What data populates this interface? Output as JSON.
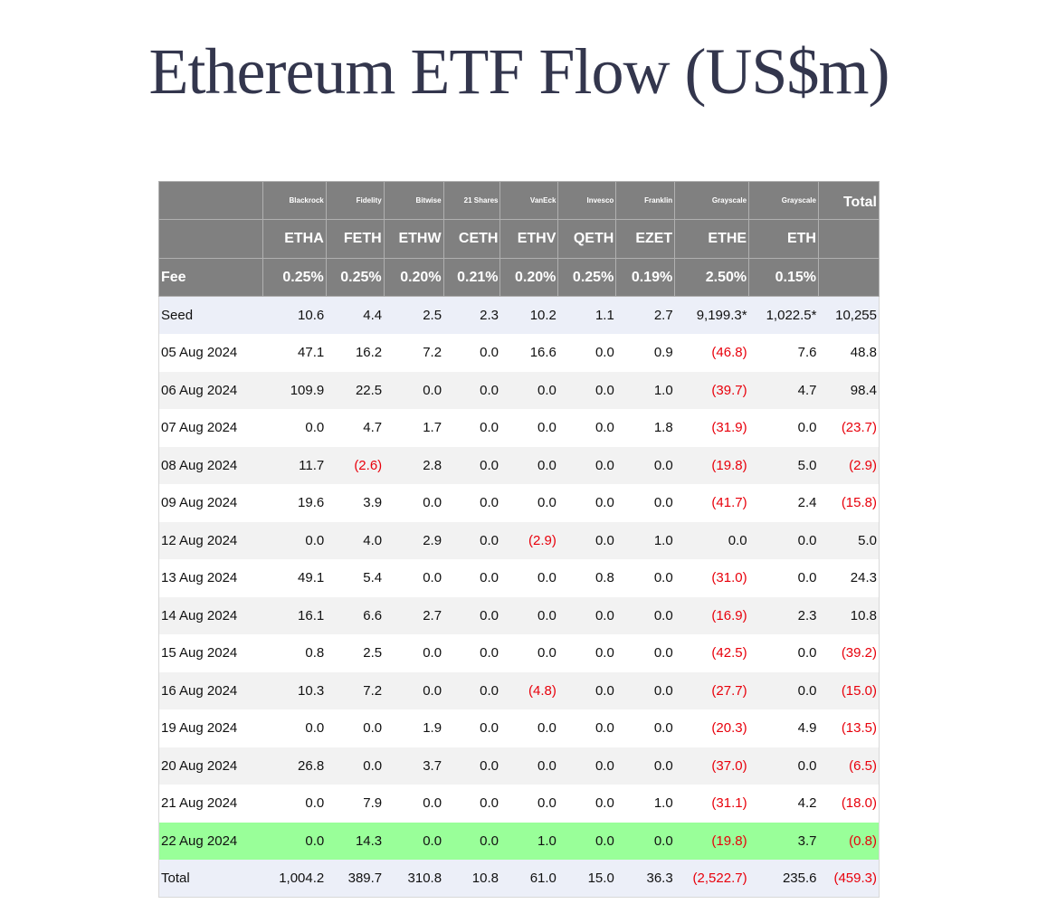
{
  "title": "Ethereum ETF Flow (US$m)",
  "colors": {
    "header_bg": "#808080",
    "seed_total_bg": "#eceff8",
    "alt_row_bg": "#f2f2f2",
    "highlight_bg": "#99ff99",
    "negative": "#e8000b"
  },
  "header": {
    "providers": [
      "",
      "Blackrock",
      "Fidelity",
      "Bitwise",
      "21 Shares",
      "VanEck",
      "Invesco",
      "Franklin",
      "Grayscale",
      "Grayscale",
      "Total"
    ],
    "tickers": [
      "",
      "ETHA",
      "FETH",
      "ETHW",
      "CETH",
      "ETHV",
      "QETH",
      "EZET",
      "ETHE",
      "ETH",
      ""
    ],
    "fees": [
      "Fee",
      "0.25%",
      "0.25%",
      "0.20%",
      "0.21%",
      "0.20%",
      "0.25%",
      "0.19%",
      "2.50%",
      "0.15%",
      ""
    ]
  },
  "rows": [
    {
      "style": "blue",
      "cells": [
        "Seed",
        "10.6",
        "4.4",
        "2.5",
        "2.3",
        "10.2",
        "1.1",
        "2.7",
        "9,199.3*",
        "1,022.5*",
        "10,255"
      ]
    },
    {
      "style": "white",
      "cells": [
        "05 Aug 2024",
        "47.1",
        "16.2",
        "7.2",
        "0.0",
        "16.6",
        "0.0",
        "0.9",
        "(46.8)",
        "7.6",
        "48.8"
      ]
    },
    {
      "style": "gray",
      "cells": [
        "06 Aug 2024",
        "109.9",
        "22.5",
        "0.0",
        "0.0",
        "0.0",
        "0.0",
        "1.0",
        "(39.7)",
        "4.7",
        "98.4"
      ]
    },
    {
      "style": "white",
      "cells": [
        "07 Aug 2024",
        "0.0",
        "4.7",
        "1.7",
        "0.0",
        "0.0",
        "0.0",
        "1.8",
        "(31.9)",
        "0.0",
        "(23.7)"
      ]
    },
    {
      "style": "gray",
      "cells": [
        "08 Aug 2024",
        "11.7",
        "(2.6)",
        "2.8",
        "0.0",
        "0.0",
        "0.0",
        "0.0",
        "(19.8)",
        "5.0",
        "(2.9)"
      ]
    },
    {
      "style": "white",
      "cells": [
        "09 Aug 2024",
        "19.6",
        "3.9",
        "0.0",
        "0.0",
        "0.0",
        "0.0",
        "0.0",
        "(41.7)",
        "2.4",
        "(15.8)"
      ]
    },
    {
      "style": "gray",
      "cells": [
        "12 Aug 2024",
        "0.0",
        "4.0",
        "2.9",
        "0.0",
        "(2.9)",
        "0.0",
        "1.0",
        "0.0",
        "0.0",
        "5.0"
      ]
    },
    {
      "style": "white",
      "cells": [
        "13 Aug 2024",
        "49.1",
        "5.4",
        "0.0",
        "0.0",
        "0.0",
        "0.8",
        "0.0",
        "(31.0)",
        "0.0",
        "24.3"
      ]
    },
    {
      "style": "gray",
      "cells": [
        "14 Aug 2024",
        "16.1",
        "6.6",
        "2.7",
        "0.0",
        "0.0",
        "0.0",
        "0.0",
        "(16.9)",
        "2.3",
        "10.8"
      ]
    },
    {
      "style": "white",
      "cells": [
        "15 Aug 2024",
        "0.8",
        "2.5",
        "0.0",
        "0.0",
        "0.0",
        "0.0",
        "0.0",
        "(42.5)",
        "0.0",
        "(39.2)"
      ]
    },
    {
      "style": "gray",
      "cells": [
        "16 Aug 2024",
        "10.3",
        "7.2",
        "0.0",
        "0.0",
        "(4.8)",
        "0.0",
        "0.0",
        "(27.7)",
        "0.0",
        "(15.0)"
      ]
    },
    {
      "style": "white",
      "cells": [
        "19 Aug 2024",
        "0.0",
        "0.0",
        "1.9",
        "0.0",
        "0.0",
        "0.0",
        "0.0",
        "(20.3)",
        "4.9",
        "(13.5)"
      ]
    },
    {
      "style": "gray",
      "cells": [
        "20 Aug 2024",
        "26.8",
        "0.0",
        "3.7",
        "0.0",
        "0.0",
        "0.0",
        "0.0",
        "(37.0)",
        "0.0",
        "(6.5)"
      ]
    },
    {
      "style": "white",
      "cells": [
        "21 Aug 2024",
        "0.0",
        "7.9",
        "0.0",
        "0.0",
        "0.0",
        "0.0",
        "1.0",
        "(31.1)",
        "4.2",
        "(18.0)"
      ]
    },
    {
      "style": "green",
      "cells": [
        "22 Aug 2024",
        "0.0",
        "14.3",
        "0.0",
        "0.0",
        "1.0",
        "0.0",
        "0.0",
        "(19.8)",
        "3.7",
        "(0.8)"
      ]
    },
    {
      "style": "blue",
      "cells": [
        "Total",
        "1,004.2",
        "389.7",
        "310.8",
        "10.8",
        "61.0",
        "15.0",
        "36.3",
        "(2,522.7)",
        "235.6",
        "(459.3)"
      ]
    }
  ]
}
